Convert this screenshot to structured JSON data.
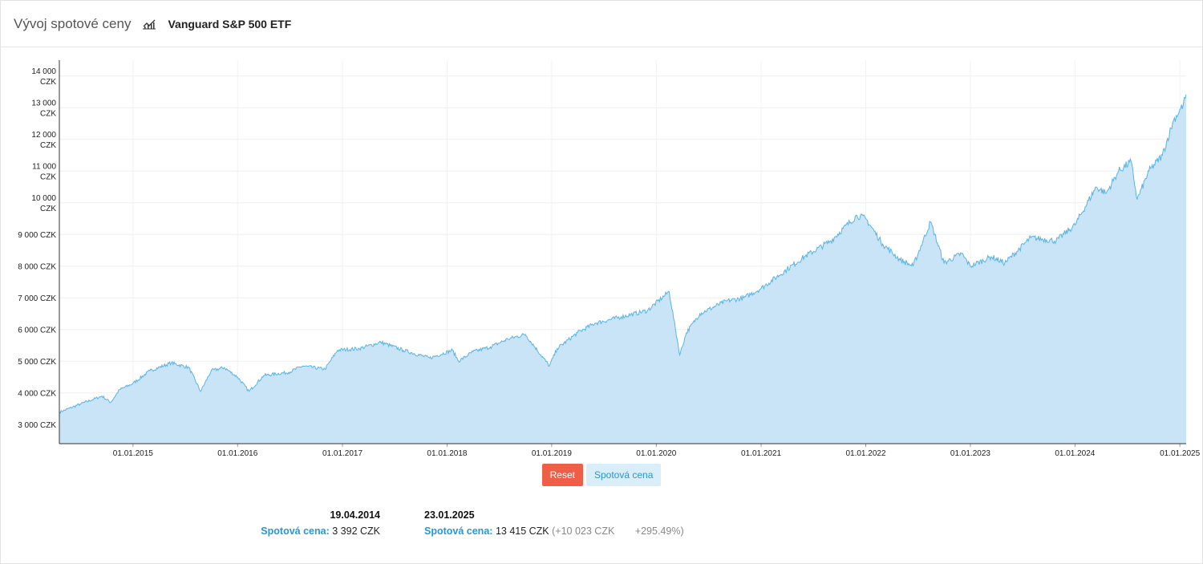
{
  "header": {
    "title": "Vývoj spotové ceny",
    "chart_icon": "line-chart-icon",
    "asset_name": "Vanguard S&P 500 ETF"
  },
  "colors": {
    "line": "#5ab4e5",
    "area": "#c8e4f6",
    "accent": "#2a96d3",
    "reset": "#ef5f48"
  },
  "buttons": {
    "reset": "Reset",
    "series": "Spotová cena"
  },
  "start": {
    "date": "19.04.2014",
    "label": "Spotová cena",
    "value": "3 392 CZK"
  },
  "end": {
    "date": "23.01.2025",
    "label": "Spotová cena",
    "value": "13 415 CZK",
    "change_abs": "(+10 023 CZK",
    "change_pct": "+295.49%)"
  },
  "chart_data": {
    "type": "area",
    "xlabel": "",
    "ylabel": "",
    "grid": true,
    "x_range": [
      "2014-04-19",
      "2025-01-23"
    ],
    "ylim": [
      2400,
      14500
    ],
    "x_ticks": [
      "01.01.2015",
      "01.01.2016",
      "01.01.2017",
      "01.01.2018",
      "01.01.2019",
      "01.01.2020",
      "01.01.2021",
      "01.01.2022",
      "01.01.2023",
      "01.01.2024",
      "01.01.2025"
    ],
    "y_ticks": [
      {
        "value": 3000,
        "label": [
          "3 000 CZK"
        ]
      },
      {
        "value": 4000,
        "label": [
          "4 000 CZK"
        ]
      },
      {
        "value": 5000,
        "label": [
          "5 000 CZK"
        ]
      },
      {
        "value": 6000,
        "label": [
          "6 000 CZK"
        ]
      },
      {
        "value": 7000,
        "label": [
          "7 000 CZK"
        ]
      },
      {
        "value": 8000,
        "label": [
          "8 000 CZK"
        ]
      },
      {
        "value": 9000,
        "label": [
          "9 000 CZK"
        ]
      },
      {
        "value": 10000,
        "label": [
          "10 000",
          "CZK"
        ]
      },
      {
        "value": 11000,
        "label": [
          "11 000",
          "CZK"
        ]
      },
      {
        "value": 12000,
        "label": [
          "12 000",
          "CZK"
        ]
      },
      {
        "value": 13000,
        "label": [
          "13 000",
          "CZK"
        ]
      },
      {
        "value": 14000,
        "label": [
          "14 000",
          "CZK"
        ]
      }
    ],
    "series": [
      {
        "x": [
          "2014-04-19",
          "2014-07-01",
          "2014-09-15",
          "2014-10-15",
          "2014-11-15",
          "2015-01-01",
          "2015-03-01",
          "2015-05-15",
          "2015-07-15",
          "2015-08-25",
          "2015-10-01",
          "2015-11-15",
          "2016-01-01",
          "2016-02-10",
          "2016-04-01",
          "2016-06-27",
          "2016-08-15",
          "2016-11-01",
          "2016-12-15",
          "2017-03-01",
          "2017-05-15",
          "2017-08-01",
          "2017-11-01",
          "2018-01-20",
          "2018-02-10",
          "2018-04-01",
          "2018-06-01",
          "2018-08-01",
          "2018-10-01",
          "2018-12-24",
          "2019-01-20",
          "2019-04-01",
          "2019-06-01",
          "2019-09-01",
          "2019-12-01",
          "2020-02-15",
          "2020-03-23",
          "2020-04-15",
          "2020-06-01",
          "2020-09-01",
          "2020-11-01",
          "2021-01-01",
          "2021-04-01",
          "2021-06-01",
          "2021-09-01",
          "2021-12-01",
          "2022-01-01",
          "2022-03-01",
          "2022-05-01",
          "2022-06-15",
          "2022-08-15",
          "2022-10-01",
          "2022-12-01",
          "2023-01-01",
          "2023-03-15",
          "2023-05-01",
          "2023-07-31",
          "2023-10-27",
          "2024-01-01",
          "2024-03-15",
          "2024-04-19",
          "2024-06-01",
          "2024-07-15",
          "2024-08-05",
          "2024-09-15",
          "2024-11-01",
          "2024-12-10",
          "2025-01-13",
          "2025-01-23"
        ],
        "values": [
          3392,
          3650,
          3900,
          3700,
          4100,
          4300,
          4700,
          4950,
          4800,
          4050,
          4700,
          4800,
          4500,
          4050,
          4550,
          4650,
          4850,
          4750,
          5350,
          5400,
          5600,
          5350,
          5100,
          5350,
          5000,
          5300,
          5450,
          5700,
          5850,
          4850,
          5400,
          5900,
          6200,
          6400,
          6600,
          7200,
          5200,
          5900,
          6500,
          6900,
          7000,
          7300,
          7900,
          8300,
          8800,
          9600,
          9500,
          8700,
          8200,
          8000,
          9400,
          8100,
          8400,
          8000,
          8300,
          8100,
          8900,
          8800,
          9300,
          10500,
          10300,
          11000,
          11300,
          10100,
          11000,
          11500,
          12600,
          13100,
          13415
        ]
      }
    ]
  }
}
